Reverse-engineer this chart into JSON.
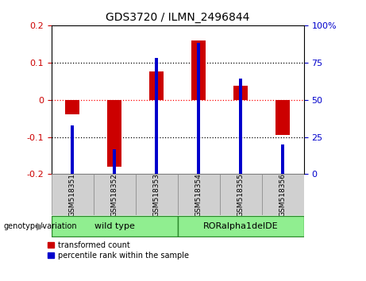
{
  "title": "GDS3720 / ILMN_2496844",
  "samples": [
    "GSM518351",
    "GSM518352",
    "GSM518353",
    "GSM518354",
    "GSM518355",
    "GSM518356"
  ],
  "transformed_counts": [
    -0.04,
    -0.18,
    0.075,
    0.16,
    0.038,
    -0.095
  ],
  "percentile_ranks": [
    33,
    17,
    78,
    88,
    64,
    20
  ],
  "groups": [
    {
      "label": "wild type",
      "indices": [
        0,
        1,
        2
      ],
      "color": "#90EE90"
    },
    {
      "label": "RORalpha1delDE",
      "indices": [
        3,
        4,
        5
      ],
      "color": "#90EE90"
    }
  ],
  "ylim_left": [
    -0.2,
    0.2
  ],
  "ylim_right": [
    0,
    100
  ],
  "yticks_left": [
    -0.2,
    -0.1,
    0.0,
    0.1,
    0.2
  ],
  "yticks_right": [
    0,
    25,
    50,
    75,
    100
  ],
  "grid_yticks": [
    -0.1,
    0.0,
    0.1
  ],
  "red_bar_width": 0.35,
  "blue_bar_width": 0.08,
  "red_color": "#CC0000",
  "blue_color": "#0000CC",
  "legend_red_label": "transformed count",
  "legend_blue_label": "percentile rank within the sample",
  "genotype_label": "genotype/variation"
}
